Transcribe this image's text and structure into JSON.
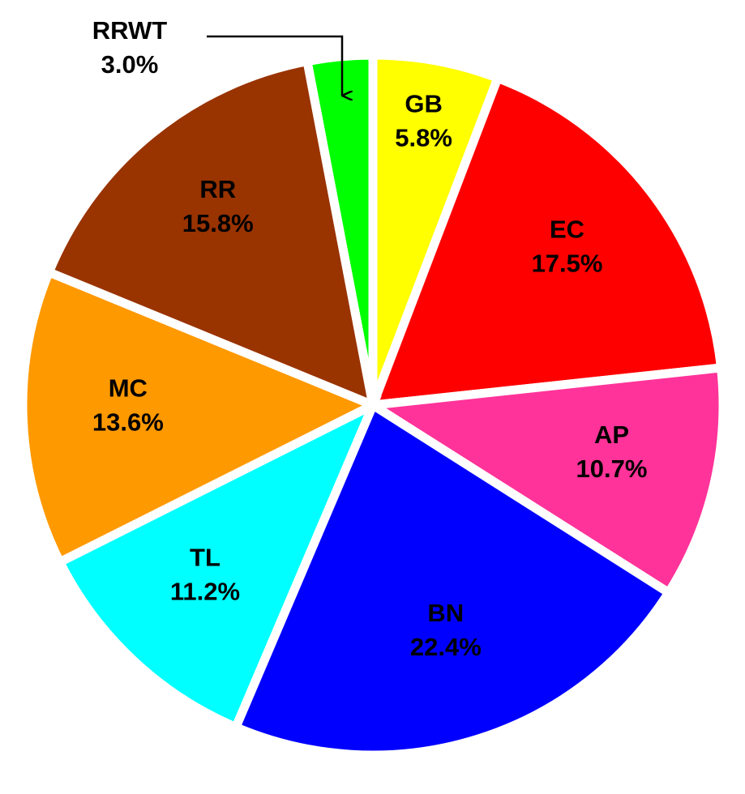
{
  "chart_data": {
    "type": "pie",
    "categories": [
      "GB",
      "EC",
      "AP",
      "BN",
      "TL",
      "MC",
      "RR",
      "RRWT"
    ],
    "values": [
      5.8,
      17.5,
      10.7,
      22.4,
      11.2,
      13.6,
      15.8,
      3.0
    ],
    "value_labels": [
      "5.8%",
      "17.5%",
      "10.7%",
      "22.4%",
      "11.2%",
      "13.6%",
      "15.8%",
      "3.0%"
    ],
    "colors": [
      "#ffff00",
      "#ff0000",
      "#ff3399",
      "#0000ff",
      "#00ffff",
      "#ff9900",
      "#993300",
      "#00ff00"
    ]
  }
}
